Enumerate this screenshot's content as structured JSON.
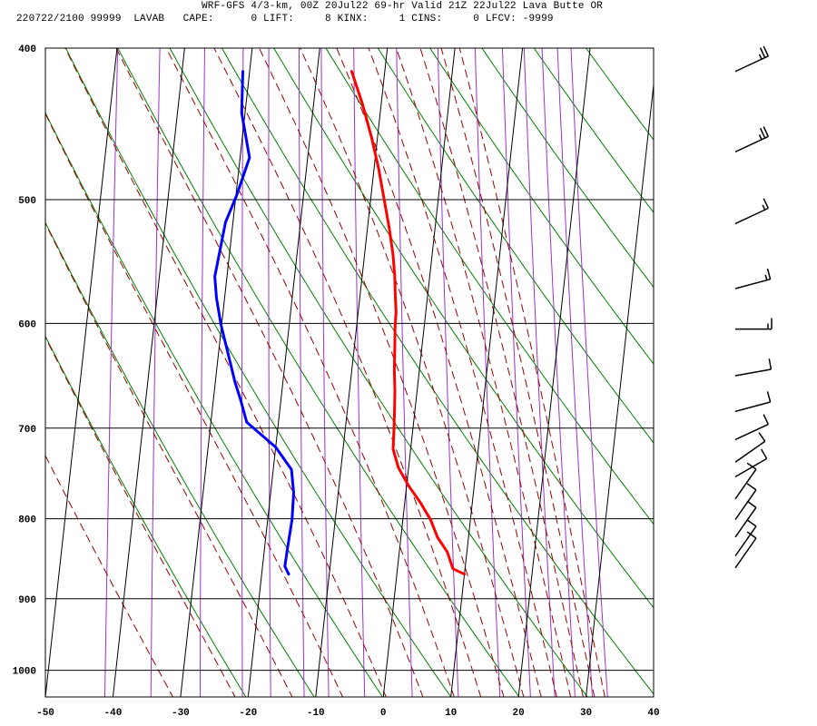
{
  "header": {
    "line1": "WRF-GFS 4/3-km, 00Z 20Jul22 69-hr Valid 21Z 22Jul22 Lava Butte OR",
    "line2": "220722/2100 99999  LAVAB   CAPE:      0 LIFT:     8 KINX:     1 CINS:     0 LFCV: -9999"
  },
  "colors": {
    "temperature": "#ff0000",
    "dewpoint": "#0000ff",
    "dry_adiabat": "#008000",
    "moist_adiabat": "#990000",
    "mixing_ratio": "#9933cc",
    "grid": "#000000",
    "wind_barb": "#000000"
  },
  "chart_data": {
    "type": "line",
    "subtype": "skew-T log-p sounding",
    "xlabel": "",
    "ylabel": "",
    "x_ticks": [
      "-50",
      "-40",
      "-30",
      "-20",
      "-10",
      "0",
      "10",
      "20",
      "30",
      "40"
    ],
    "p_ticks": [
      "400",
      "500",
      "600",
      "700",
      "800",
      "900",
      "1000"
    ],
    "xlim": [
      -50,
      40
    ],
    "plim": [
      400,
      1040
    ],
    "grid": true,
    "series": [
      {
        "id": "temperature",
        "points": [
          [
            -14.9,
            414
          ],
          [
            -12.8,
            434
          ],
          [
            -10.9,
            456
          ],
          [
            -9.3,
            478
          ],
          [
            -8.0,
            500
          ],
          [
            -6.8,
            521
          ],
          [
            -5.8,
            542
          ],
          [
            -5.2,
            559
          ],
          [
            -4.8,
            575
          ],
          [
            -4.4,
            590
          ],
          [
            -4.3,
            603
          ],
          [
            -4.0,
            622
          ],
          [
            -3.7,
            643
          ],
          [
            -3.3,
            662
          ],
          [
            -3.0,
            683
          ],
          [
            -2.8,
            701
          ],
          [
            -2.6,
            722
          ],
          [
            -1.5,
            742
          ],
          [
            0.3,
            762
          ],
          [
            2.3,
            781
          ],
          [
            4.1,
            801
          ],
          [
            5.4,
            822
          ],
          [
            7.1,
            840
          ],
          [
            8.2,
            861
          ],
          [
            10.0,
            868
          ]
        ]
      },
      {
        "id": "dewpoint",
        "points": [
          [
            -31.0,
            414
          ],
          [
            -30.5,
            440
          ],
          [
            -28.6,
            470
          ],
          [
            -29.9,
            497
          ],
          [
            -31.1,
            517
          ],
          [
            -31.8,
            560
          ],
          [
            -31.2,
            578
          ],
          [
            -30.1,
            601
          ],
          [
            -28.2,
            634
          ],
          [
            -27.1,
            654
          ],
          [
            -26.0,
            671
          ],
          [
            -24.7,
            694
          ],
          [
            -20.0,
            720
          ],
          [
            -17.3,
            744
          ],
          [
            -16.6,
            770
          ],
          [
            -16.4,
            801
          ],
          [
            -16.6,
            835
          ],
          [
            -16.7,
            858
          ],
          [
            -16.0,
            868
          ]
        ]
      }
    ],
    "wind_barbs": [
      {
        "p": 414,
        "dir": 245,
        "speed": 25
      },
      {
        "p": 466,
        "dir": 245,
        "speed": 25
      },
      {
        "p": 518,
        "dir": 245,
        "speed": 15
      },
      {
        "p": 570,
        "dir": 255,
        "speed": 15
      },
      {
        "p": 605,
        "dir": 270,
        "speed": 15
      },
      {
        "p": 648,
        "dir": 260,
        "speed": 10
      },
      {
        "p": 683,
        "dir": 255,
        "speed": 10
      },
      {
        "p": 712,
        "dir": 245,
        "speed": 10
      },
      {
        "p": 736,
        "dir": 235,
        "speed": 10
      },
      {
        "p": 752,
        "dir": 240,
        "speed": 10
      },
      {
        "p": 777,
        "dir": 215,
        "speed": 10
      },
      {
        "p": 801,
        "dir": 215,
        "speed": 10
      },
      {
        "p": 822,
        "dir": 215,
        "speed": 10
      },
      {
        "p": 845,
        "dir": 215,
        "speed": 10
      },
      {
        "p": 860,
        "dir": 215,
        "speed": 10
      }
    ],
    "dry_adiabats_theta_k": [
      250,
      260,
      270,
      280,
      290,
      300,
      310,
      320,
      330,
      340,
      350,
      360,
      370,
      380
    ],
    "moist_adiabats_thetae_k": [
      240,
      250,
      260,
      270,
      280,
      290,
      300,
      310,
      320,
      330,
      340,
      350,
      360,
      370,
      380,
      390
    ],
    "mixing_ratio_gkg": [
      0.1,
      0.2,
      0.4,
      0.7,
      1,
      1.5,
      2,
      3,
      5,
      8,
      12,
      16,
      20,
      24,
      28,
      32
    ]
  }
}
